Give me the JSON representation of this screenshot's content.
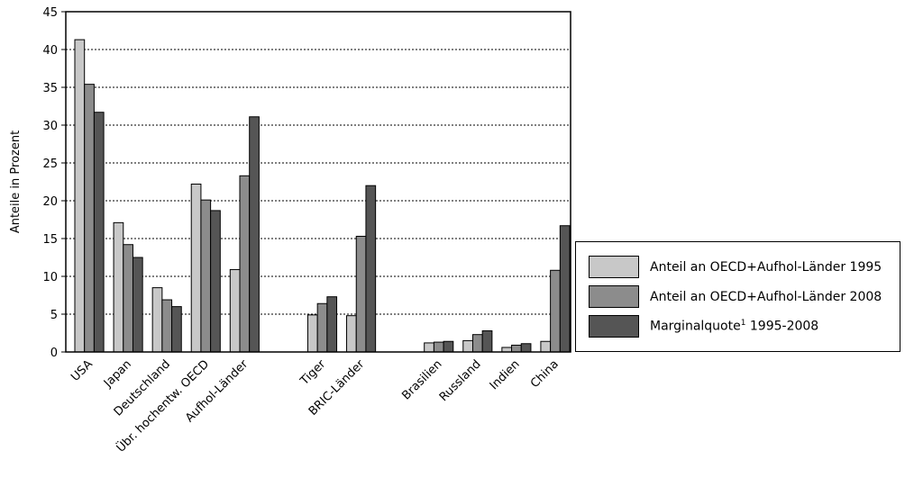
{
  "chart_data": {
    "type": "bar",
    "ylabel": "Anteile in Prozent",
    "ylim": [
      0,
      45
    ],
    "yticks": [
      0,
      5,
      10,
      15,
      20,
      25,
      30,
      35,
      40,
      45
    ],
    "grid": "horizontal dotted",
    "legend_position": "right",
    "groups": [
      {
        "categories": [
          "USA",
          "Japan",
          "Deutschland",
          "Übr. hochentw. OECD",
          "Aufhol-Länder"
        ]
      },
      {
        "categories": [
          "Tiger",
          "BRIC-Länder"
        ]
      },
      {
        "categories": [
          "Brasilien",
          "Russland",
          "Indien",
          "China"
        ]
      }
    ],
    "categories": [
      "USA",
      "Japan",
      "Deutschland",
      "Übr. hochentw. OECD",
      "Aufhol-Länder",
      "Tiger",
      "BRIC-Länder",
      "Brasilien",
      "Russland",
      "Indien",
      "China"
    ],
    "series": [
      {
        "name": "Anteil an OECD+Aufhol-Länder 1995",
        "color": "#c8c8c8",
        "values": [
          41.3,
          17.1,
          8.5,
          22.2,
          10.9,
          4.9,
          4.8,
          1.2,
          1.5,
          0.6,
          1.4
        ]
      },
      {
        "name": "Anteil an OECD+Aufhol-Länder 2008",
        "color": "#8c8c8c",
        "values": [
          35.4,
          14.2,
          6.9,
          20.1,
          23.3,
          6.4,
          15.3,
          1.3,
          2.3,
          0.9,
          10.8
        ]
      },
      {
        "name": "Marginalquote 1995-2008",
        "name_main": "Marginalquote",
        "name_sup": "1",
        "name_rest": " 1995-2008",
        "color": "#555555",
        "values": [
          31.7,
          12.5,
          6.0,
          18.7,
          31.1,
          7.3,
          22.0,
          1.4,
          2.8,
          1.1,
          16.7
        ]
      }
    ]
  }
}
